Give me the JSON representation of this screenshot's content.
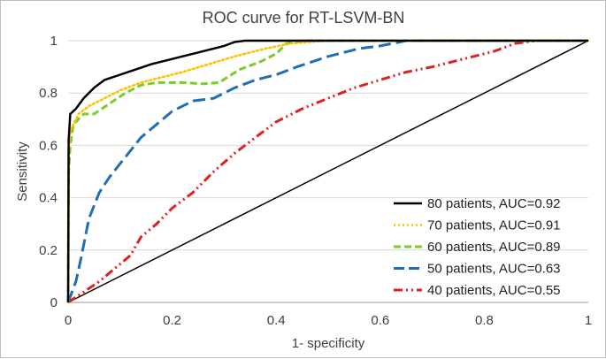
{
  "chart_data": {
    "type": "line",
    "title": "ROC curve for RT-LSVM-BN",
    "xlabel": "1- specificity",
    "ylabel": "Sensitivity",
    "xlim": [
      0,
      1
    ],
    "ylim": [
      0,
      1
    ],
    "xticks": [
      "0",
      "0.2",
      "0.4",
      "0.6",
      "0.8",
      "1"
    ],
    "yticks": [
      "0",
      "0.2",
      "0.4",
      "0.6",
      "0.8",
      "1"
    ],
    "grid": "horizontal",
    "legend_position": "bottom-right",
    "reference_line": [
      [
        0,
        0
      ],
      [
        1,
        1
      ]
    ],
    "series": [
      {
        "name": "80 patients, AUC=0.92",
        "color": "#000000",
        "style": "solid",
        "points": [
          [
            0,
            0
          ],
          [
            0.001,
            0.62
          ],
          [
            0.004,
            0.72
          ],
          [
            0.015,
            0.74
          ],
          [
            0.03,
            0.78
          ],
          [
            0.05,
            0.82
          ],
          [
            0.07,
            0.85
          ],
          [
            0.1,
            0.87
          ],
          [
            0.13,
            0.89
          ],
          [
            0.16,
            0.91
          ],
          [
            0.2,
            0.93
          ],
          [
            0.24,
            0.95
          ],
          [
            0.28,
            0.97
          ],
          [
            0.3,
            0.98
          ],
          [
            0.32,
            0.995
          ],
          [
            0.34,
            1.0
          ],
          [
            0.5,
            1.0
          ],
          [
            1,
            1.0
          ]
        ]
      },
      {
        "name": "70 patients, AUC=0.91",
        "color": "#ffc000",
        "style": "dotted",
        "points": [
          [
            0,
            0
          ],
          [
            0.001,
            0.58
          ],
          [
            0.005,
            0.66
          ],
          [
            0.02,
            0.72
          ],
          [
            0.04,
            0.75
          ],
          [
            0.07,
            0.78
          ],
          [
            0.1,
            0.81
          ],
          [
            0.14,
            0.84
          ],
          [
            0.18,
            0.86
          ],
          [
            0.22,
            0.88
          ],
          [
            0.27,
            0.91
          ],
          [
            0.32,
            0.94
          ],
          [
            0.38,
            0.97
          ],
          [
            0.43,
            0.99
          ],
          [
            0.5,
            1.0
          ],
          [
            1,
            1.0
          ]
        ]
      },
      {
        "name": "60 patients, AUC=0.89",
        "color": "#7acc29",
        "style": "dashed",
        "points": [
          [
            0,
            0
          ],
          [
            0.001,
            0.5
          ],
          [
            0.004,
            0.6
          ],
          [
            0.01,
            0.68
          ],
          [
            0.03,
            0.72
          ],
          [
            0.05,
            0.72
          ],
          [
            0.08,
            0.76
          ],
          [
            0.11,
            0.8
          ],
          [
            0.14,
            0.83
          ],
          [
            0.17,
            0.84
          ],
          [
            0.22,
            0.84
          ],
          [
            0.26,
            0.835
          ],
          [
            0.29,
            0.84
          ],
          [
            0.33,
            0.89
          ],
          [
            0.37,
            0.92
          ],
          [
            0.4,
            0.95
          ],
          [
            0.42,
            0.99
          ],
          [
            0.45,
            1.0
          ],
          [
            1,
            1.0
          ]
        ]
      },
      {
        "name": "50 patients, AUC=0.63",
        "color": "#1f6eb4",
        "style": "long-dash",
        "points": [
          [
            0,
            0
          ],
          [
            0.015,
            0.08
          ],
          [
            0.025,
            0.17
          ],
          [
            0.04,
            0.32
          ],
          [
            0.06,
            0.42
          ],
          [
            0.08,
            0.48
          ],
          [
            0.1,
            0.53
          ],
          [
            0.12,
            0.58
          ],
          [
            0.14,
            0.63
          ],
          [
            0.17,
            0.68
          ],
          [
            0.2,
            0.73
          ],
          [
            0.24,
            0.77
          ],
          [
            0.28,
            0.78
          ],
          [
            0.32,
            0.82
          ],
          [
            0.36,
            0.85
          ],
          [
            0.4,
            0.87
          ],
          [
            0.44,
            0.9
          ],
          [
            0.5,
            0.94
          ],
          [
            0.56,
            0.97
          ],
          [
            0.6,
            0.98
          ],
          [
            0.65,
            1.0
          ],
          [
            1,
            1.0
          ]
        ]
      },
      {
        "name": "40 patients, AUC=0.55",
        "color": "#e02020",
        "style": "dash-dot-dot",
        "points": [
          [
            0,
            0
          ],
          [
            0.03,
            0.04
          ],
          [
            0.06,
            0.08
          ],
          [
            0.09,
            0.13
          ],
          [
            0.12,
            0.18
          ],
          [
            0.14,
            0.25
          ],
          [
            0.17,
            0.3
          ],
          [
            0.2,
            0.36
          ],
          [
            0.24,
            0.42
          ],
          [
            0.28,
            0.5
          ],
          [
            0.32,
            0.57
          ],
          [
            0.36,
            0.63
          ],
          [
            0.4,
            0.69
          ],
          [
            0.45,
            0.74
          ],
          [
            0.5,
            0.78
          ],
          [
            0.55,
            0.82
          ],
          [
            0.6,
            0.85
          ],
          [
            0.65,
            0.88
          ],
          [
            0.7,
            0.9
          ],
          [
            0.76,
            0.93
          ],
          [
            0.82,
            0.96
          ],
          [
            0.86,
            0.99
          ],
          [
            0.9,
            1.0
          ],
          [
            1,
            1.0
          ]
        ]
      }
    ]
  }
}
